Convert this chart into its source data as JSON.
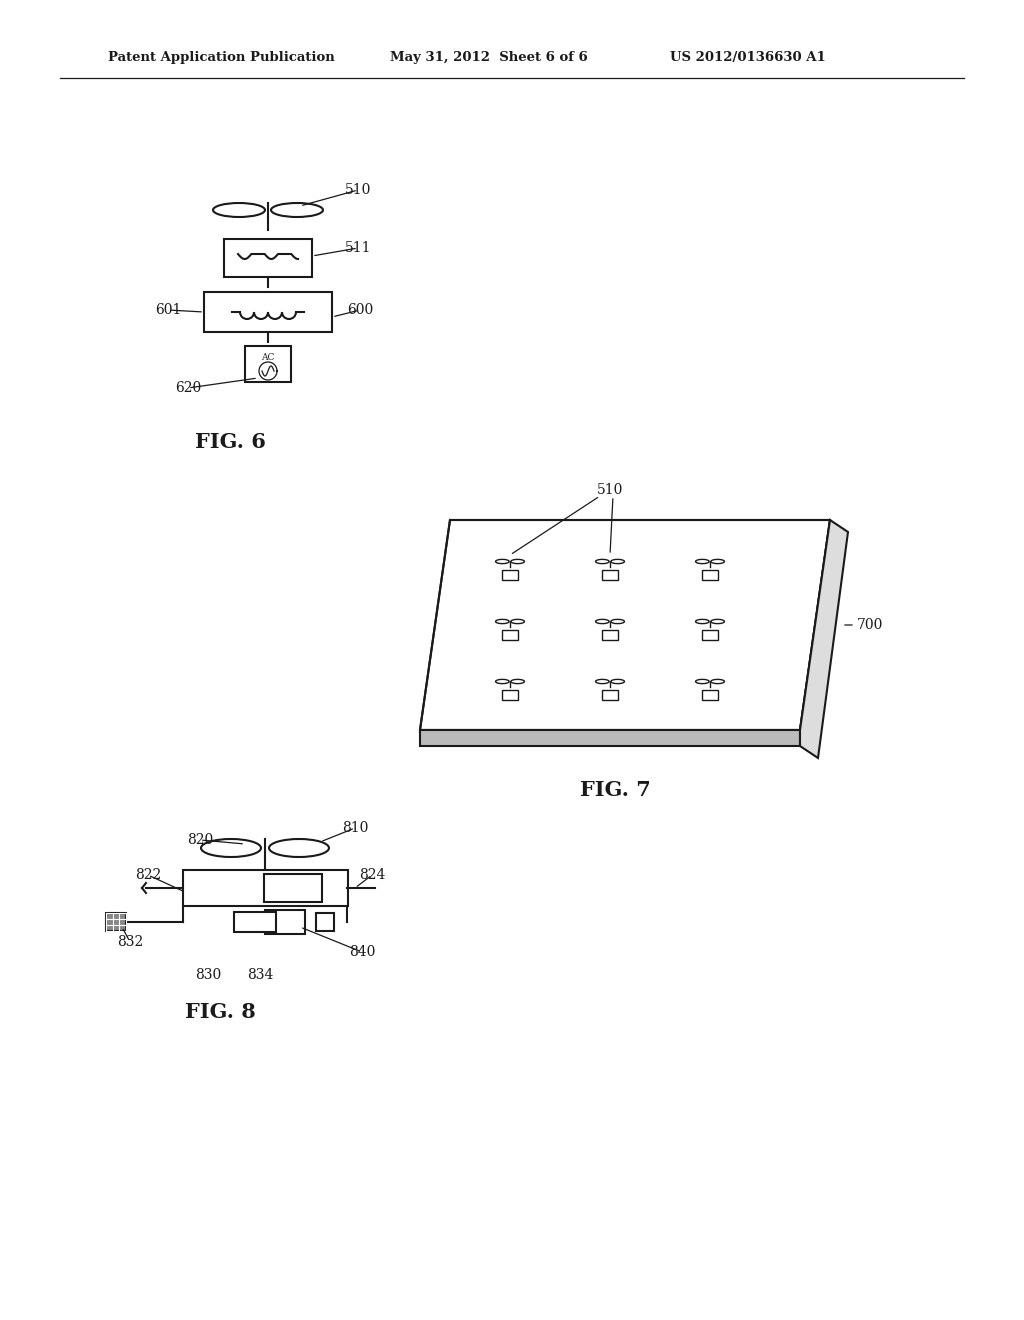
{
  "bg_color": "#ffffff",
  "header_left": "Patent Application Publication",
  "header_mid": "May 31, 2012  Sheet 6 of 6",
  "header_right": "US 2012/0136630 A1",
  "fig6_label": "FIG. 6",
  "fig7_label": "FIG. 7",
  "fig8_label": "FIG. 8",
  "line_color": "#1a1a1a"
}
